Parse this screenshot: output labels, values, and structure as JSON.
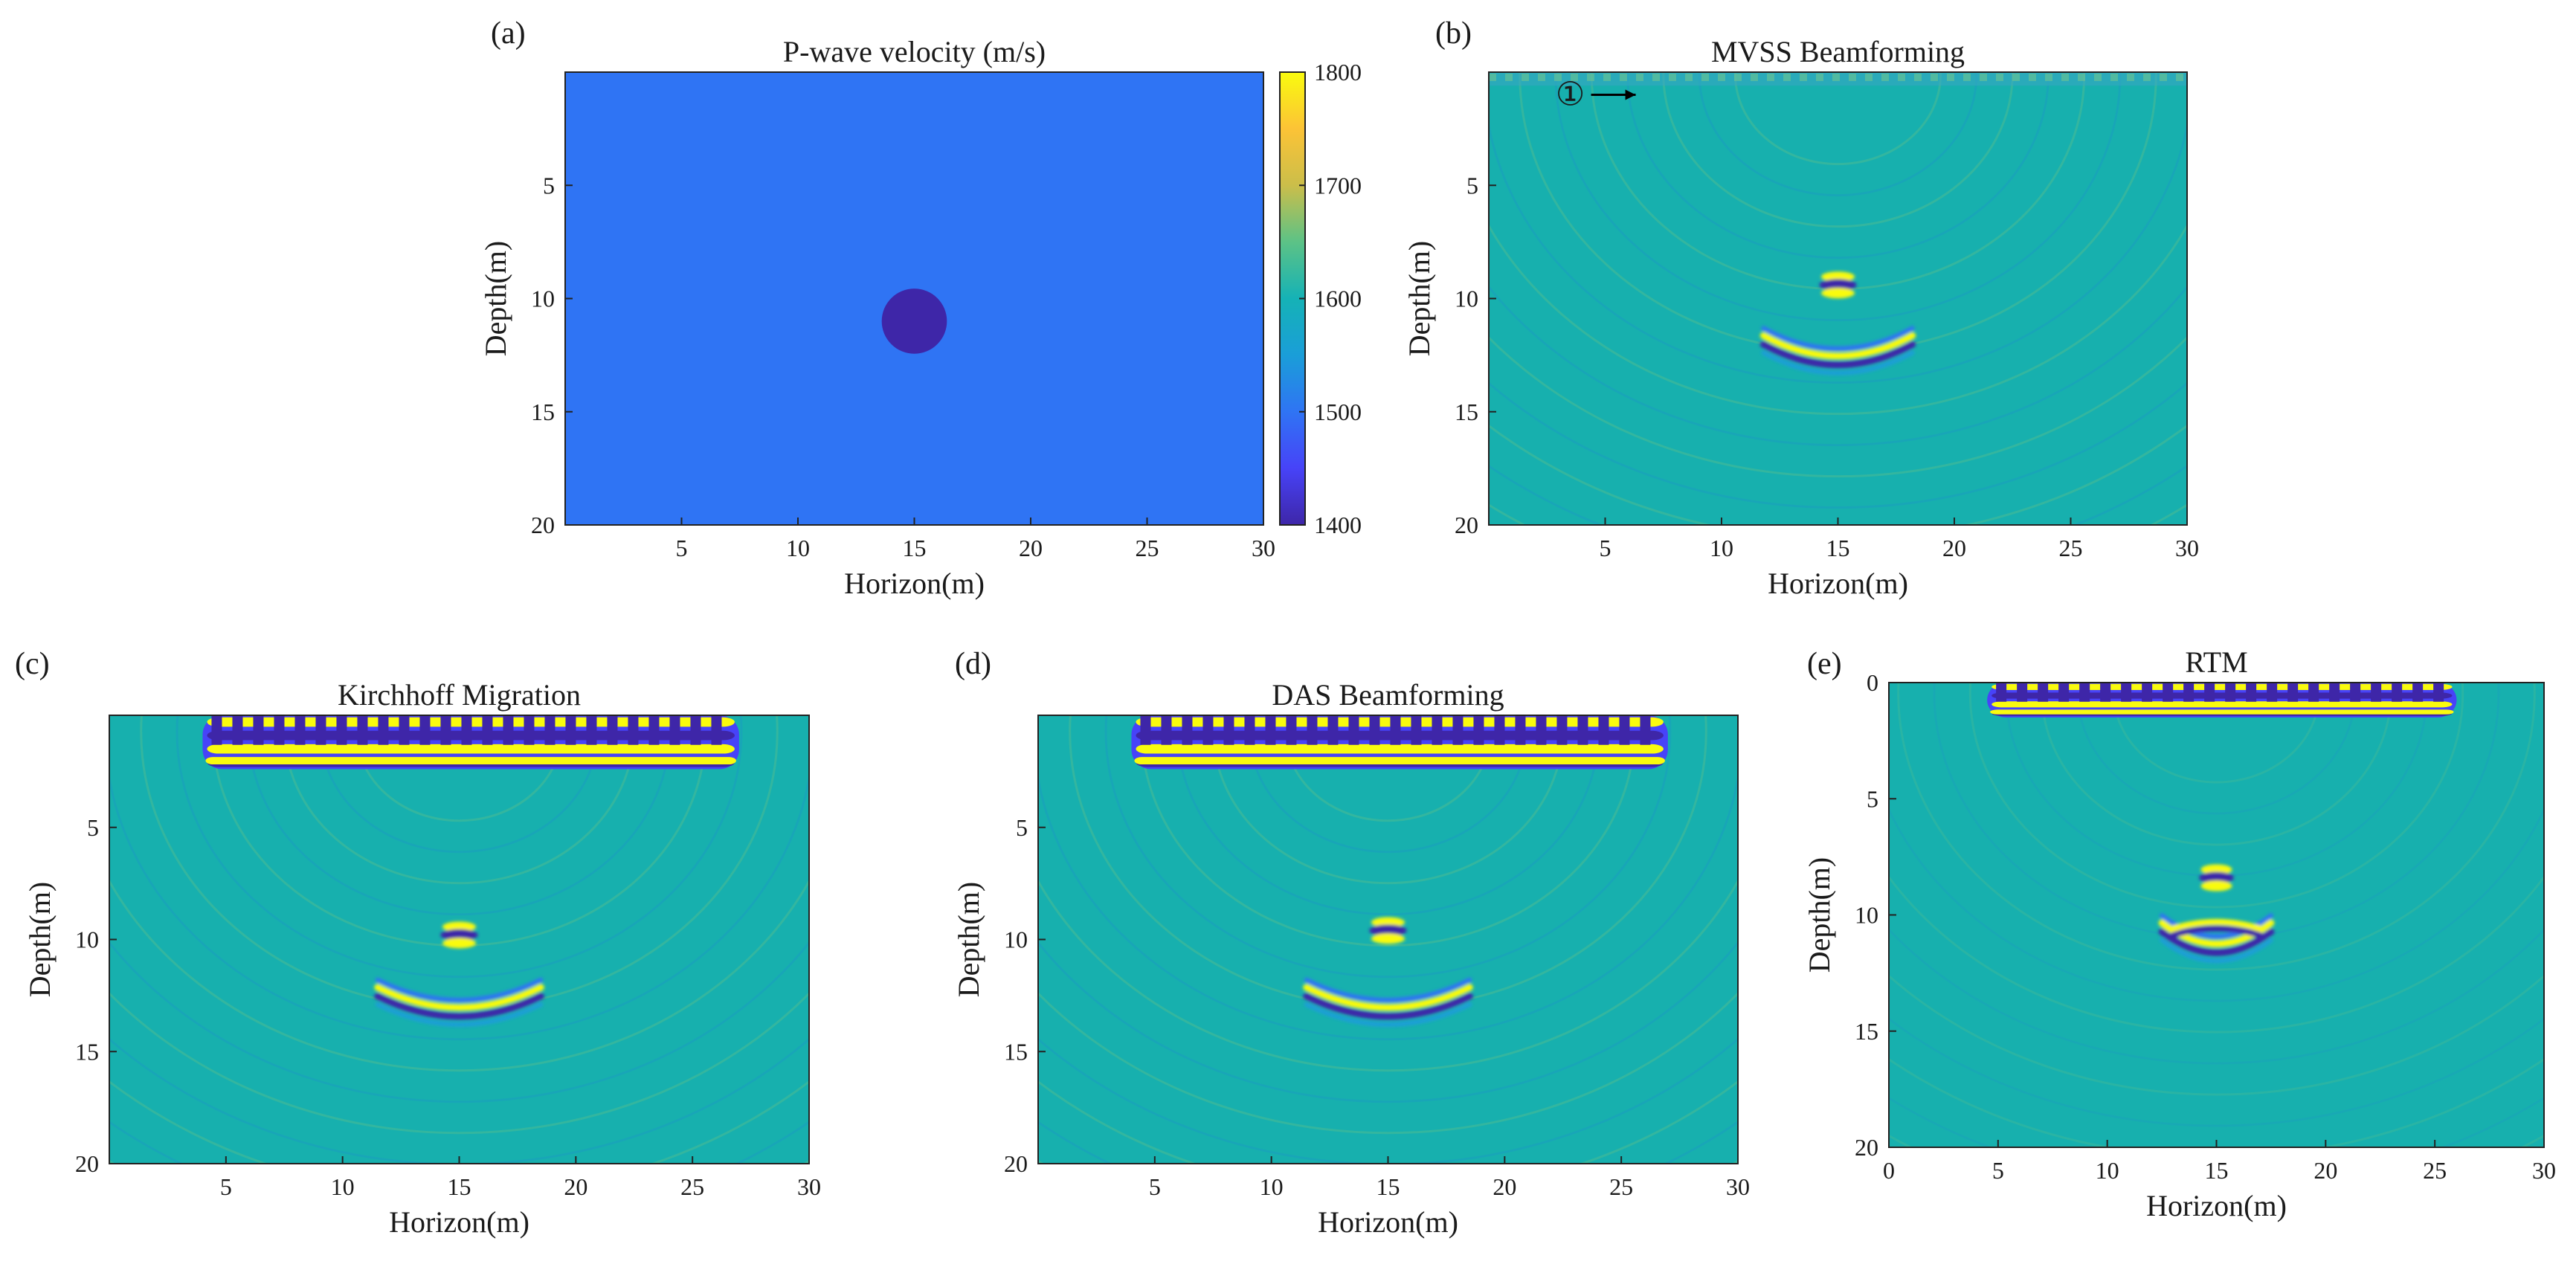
{
  "figure": {
    "colormap": [
      "#3e26a8",
      "#4743f8",
      "#2f74f4",
      "#1a9ed8",
      "#15b2b6",
      "#5cc286",
      "#cbbe4a",
      "#fcc336",
      "#f9fb0e"
    ],
    "background_teal": "#17b0ae"
  },
  "chart_data": [
    {
      "id": "a",
      "panel_label": "(a)",
      "type": "heatmap",
      "title": "P-wave velocity (m/s)",
      "xlabel": "Horizon(m)",
      "ylabel": "Depth(m)",
      "xlim": [
        0,
        30
      ],
      "ylim": [
        0,
        20
      ],
      "xticks": [
        "5",
        "10",
        "15",
        "20",
        "25",
        "30"
      ],
      "xtick_values": [
        5,
        10,
        15,
        20,
        25,
        30
      ],
      "yticks": [
        "5",
        "10",
        "15",
        "20"
      ],
      "ytick_values": [
        5,
        10,
        15,
        20
      ],
      "background_velocity": 1550,
      "anomaly": {
        "shape": "circle",
        "center_x": 15,
        "center_z": 11,
        "radius": 1.4,
        "velocity": 1400
      },
      "colorbar": {
        "min": 1400,
        "max": 1800,
        "ticks": [
          "1400",
          "1500",
          "1600",
          "1700",
          "1800"
        ],
        "tick_values": [
          1400,
          1500,
          1600,
          1700,
          1800
        ]
      }
    },
    {
      "id": "b",
      "panel_label": "(b)",
      "type": "heatmap",
      "title": "MVSS Beamforming",
      "xlabel": "Horizon(m)",
      "ylabel": "Depth(m)",
      "xlim": [
        0,
        30
      ],
      "ylim": [
        0,
        20
      ],
      "xticks": [
        "5",
        "10",
        "15",
        "20",
        "25",
        "30"
      ],
      "xtick_values": [
        5,
        10,
        15,
        20,
        25,
        30
      ],
      "yticks": [
        "5",
        "10",
        "15",
        "20"
      ],
      "ytick_values": [
        5,
        10,
        15,
        20
      ],
      "surface_band": {
        "x_start": 0,
        "x_end": 30,
        "depth": 0.4,
        "strength": "weak"
      },
      "point_reflector": {
        "x": 15,
        "z": 9.4
      },
      "arc_reflector": {
        "x": 15,
        "z": 12.8,
        "half_width": 3.2
      },
      "annotation": {
        "text": "①",
        "x": 3.5,
        "z": 1.0,
        "arrow": "right"
      }
    },
    {
      "id": "c",
      "panel_label": "(c)",
      "type": "heatmap",
      "title": "Kirchhoff Migration",
      "xlabel": "Horizon(m)",
      "ylabel": "Depth(m)",
      "xlim": [
        0,
        30
      ],
      "ylim": [
        0,
        20
      ],
      "xticks": [
        "5",
        "10",
        "15",
        "20",
        "25",
        "30"
      ],
      "xtick_values": [
        5,
        10,
        15,
        20,
        25,
        30
      ],
      "yticks": [
        "5",
        "10",
        "15",
        "20"
      ],
      "ytick_values": [
        5,
        10,
        15,
        20
      ],
      "surface_band": {
        "x_start": 4,
        "x_end": 27,
        "depth": 2.4,
        "strength": "strong"
      },
      "point_reflector": {
        "x": 15,
        "z": 9.8
      },
      "arc_reflector": {
        "x": 15,
        "z": 13.3,
        "half_width": 3.5
      }
    },
    {
      "id": "d",
      "panel_label": "(d)",
      "type": "heatmap",
      "title": "DAS Beamforming",
      "xlabel": "Horizon(m)",
      "ylabel": "Depth(m)",
      "xlim": [
        0,
        30
      ],
      "ylim": [
        0,
        20
      ],
      "xticks": [
        "5",
        "10",
        "15",
        "20",
        "25",
        "30"
      ],
      "xtick_values": [
        5,
        10,
        15,
        20,
        25,
        30
      ],
      "yticks": [
        "5",
        "10",
        "15",
        "20"
      ],
      "ytick_values": [
        5,
        10,
        15,
        20
      ],
      "surface_band": {
        "x_start": 4,
        "x_end": 27,
        "depth": 2.4,
        "strength": "strong"
      },
      "point_reflector": {
        "x": 15,
        "z": 9.6
      },
      "arc_reflector": {
        "x": 15,
        "z": 13.3,
        "half_width": 3.5
      }
    },
    {
      "id": "e",
      "panel_label": "(e)",
      "type": "heatmap",
      "title": "RTM",
      "xlabel": "Horizon(m)",
      "ylabel": "Depth(m)",
      "xlim": [
        0,
        30
      ],
      "ylim": [
        0,
        20
      ],
      "xticks": [
        "0",
        "5",
        "10",
        "15",
        "20",
        "25",
        "30"
      ],
      "xtick_values": [
        0,
        5,
        10,
        15,
        20,
        25,
        30
      ],
      "yticks": [
        "0",
        "5",
        "10",
        "15",
        "20"
      ],
      "ytick_values": [
        0,
        5,
        10,
        15,
        20
      ],
      "surface_band": {
        "x_start": 4.5,
        "x_end": 26,
        "depth": 1.5,
        "strength": "strong"
      },
      "point_reflector": {
        "x": 15,
        "z": 8.4
      },
      "arc_reflector": {
        "x": 15,
        "z": 11.5,
        "half_width": 2.5
      }
    }
  ]
}
